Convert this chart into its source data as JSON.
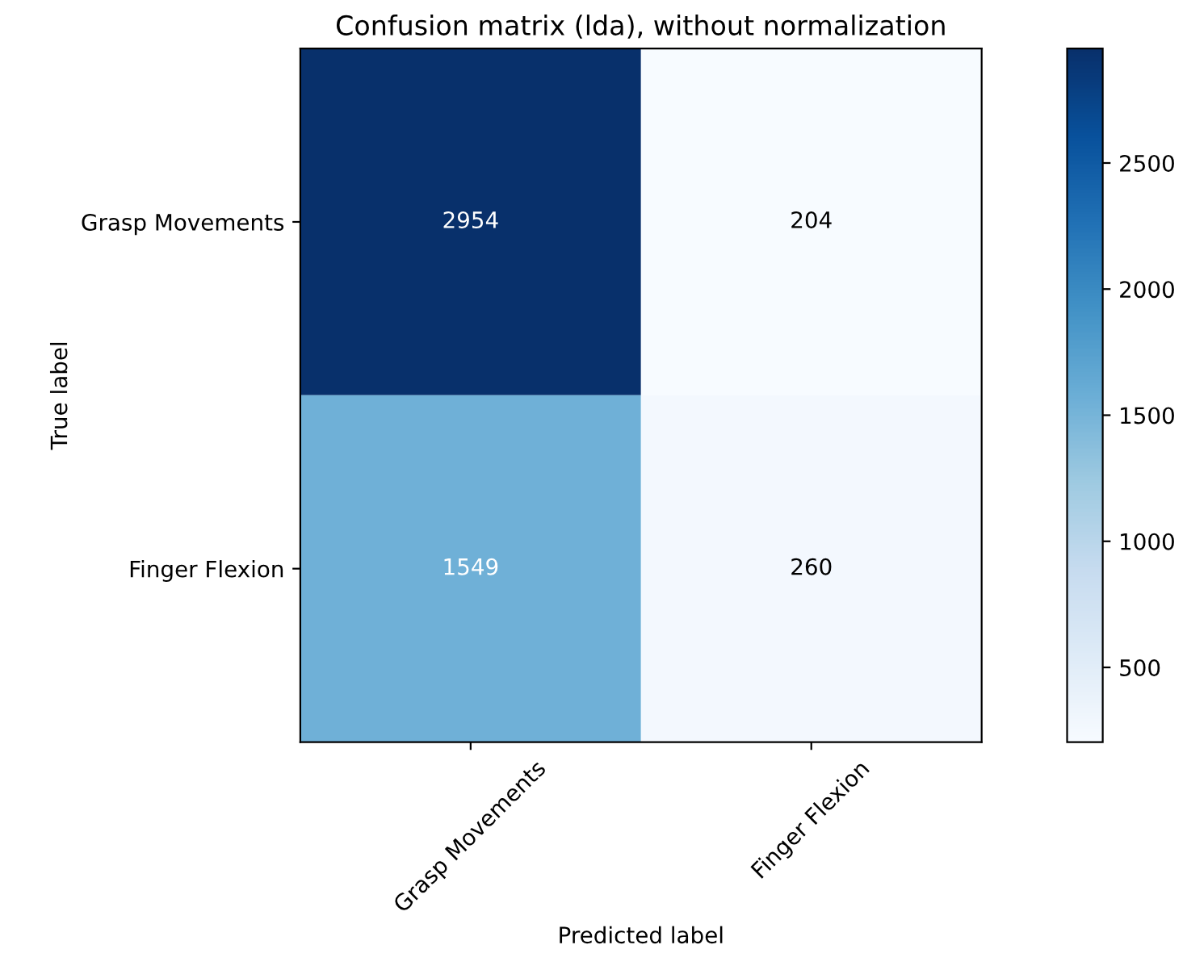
{
  "chart_data": {
    "type": "heatmap",
    "title": "Confusion matrix (lda), without normalization",
    "xlabel": "Predicted label",
    "ylabel": "True label",
    "categories": [
      "Grasp Movements",
      "Finger Flexion"
    ],
    "y_categories": [
      "Grasp Movements",
      "Finger Flexion"
    ],
    "cells": [
      [
        2954,
        204
      ],
      [
        1549,
        260
      ]
    ],
    "clim": [
      204,
      2954
    ],
    "cticks": [
      500,
      1000,
      1500,
      2000,
      2500
    ],
    "data_labels": true,
    "grid": false
  }
}
